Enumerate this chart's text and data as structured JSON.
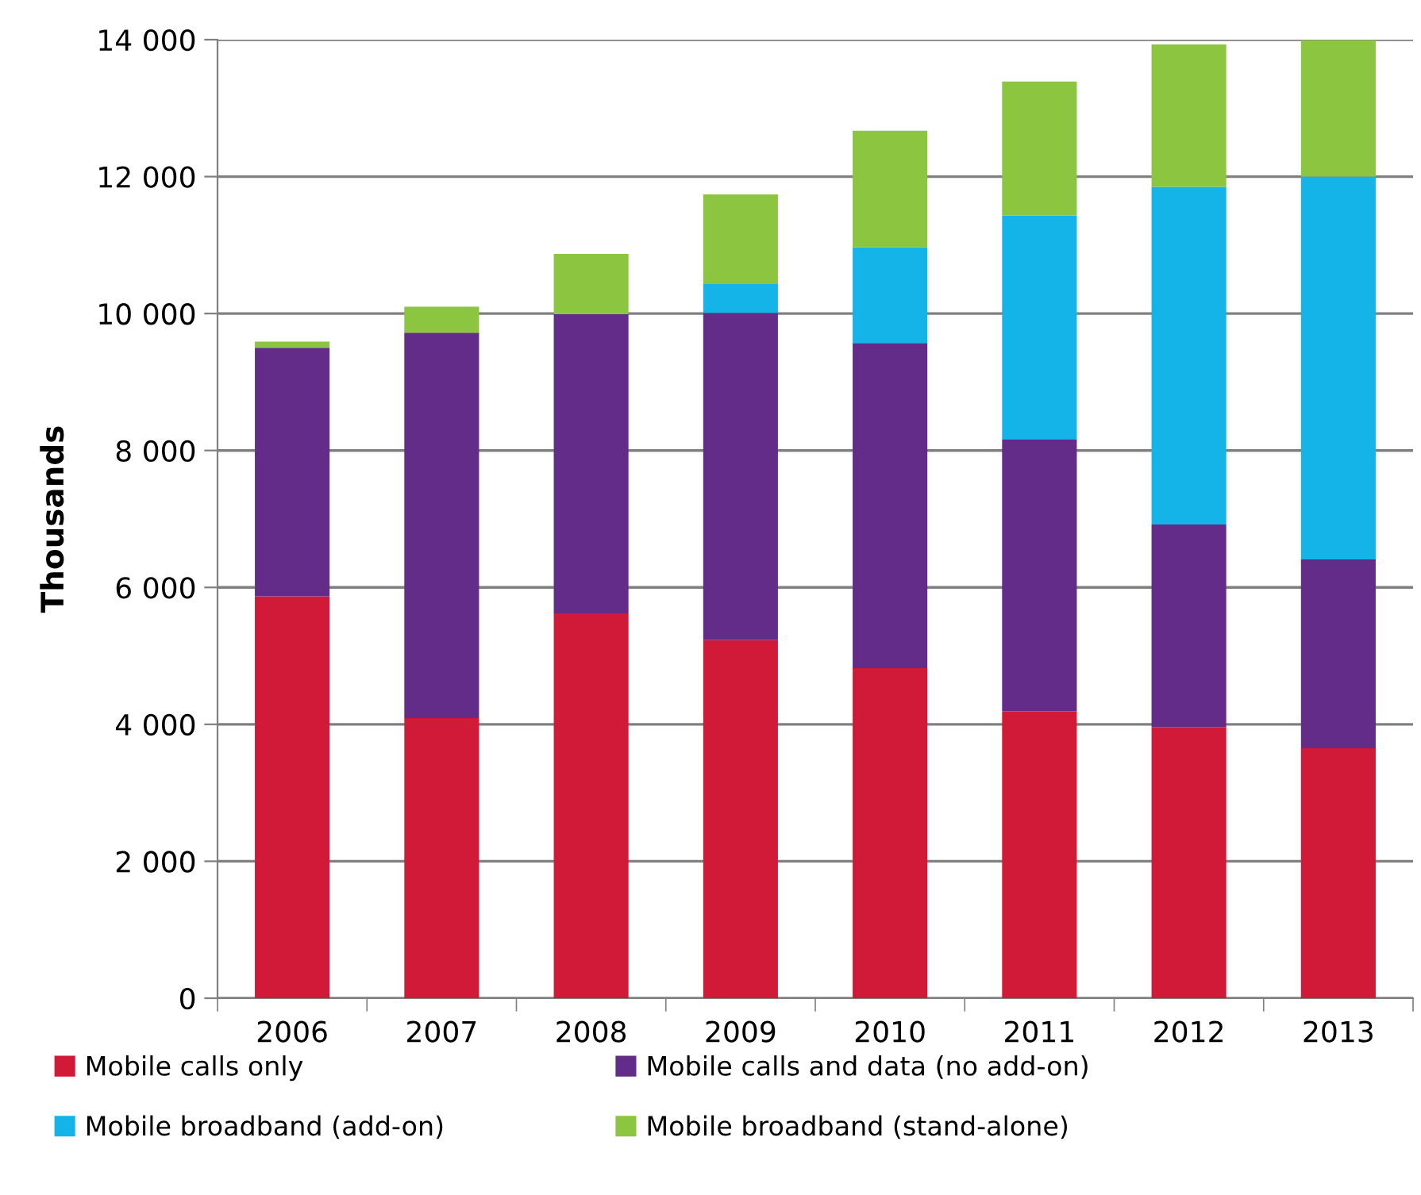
{
  "chart_data": {
    "type": "bar",
    "stacked": true,
    "ylabel": "Thousands",
    "categories": [
      "2006",
      "2007",
      "2008",
      "2009",
      "2010",
      "2011",
      "2012",
      "2013"
    ],
    "series": [
      {
        "name": "Mobile calls only",
        "color": "#d11a38",
        "values": [
          5870,
          4090,
          5620,
          5230,
          4820,
          4190,
          3960,
          3650
        ]
      },
      {
        "name": "Mobile calls and data (no add-on)",
        "color": "#642c89",
        "values": [
          3630,
          5630,
          4370,
          4780,
          4750,
          3970,
          2960,
          2760
        ]
      },
      {
        "name": "Mobile broadband (add-on)",
        "color": "#15b4e8",
        "values": [
          0,
          0,
          0,
          420,
          1400,
          3270,
          4930,
          5590
        ]
      },
      {
        "name": "Mobile broadband (stand-alone)",
        "color": "#8cc540",
        "values": [
          90,
          380,
          880,
          1310,
          1700,
          1960,
          2080,
          1990
        ]
      }
    ],
    "ylim": [
      0,
      14000
    ],
    "yticks": [
      {
        "value": 0,
        "label": "0"
      },
      {
        "value": 2000,
        "label": "2 000"
      },
      {
        "value": 4000,
        "label": "4 000"
      },
      {
        "value": 6000,
        "label": "6 000"
      },
      {
        "value": 8000,
        "label": "8 000"
      },
      {
        "value": 10000,
        "label": "10 000"
      },
      {
        "value": 12000,
        "label": "12 000"
      },
      {
        "value": 14000,
        "label": "14 000"
      }
    ],
    "grid": "y",
    "legend": "bottom"
  }
}
